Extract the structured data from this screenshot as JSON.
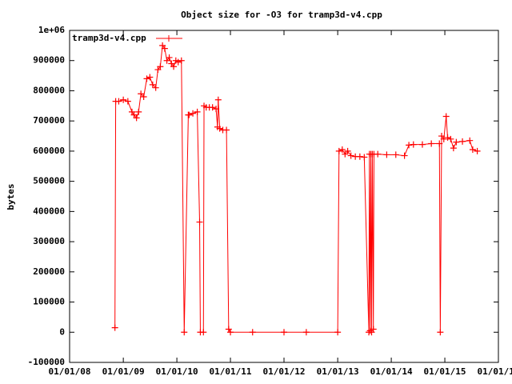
{
  "chart_data": {
    "type": "line",
    "title": "Object size for -O3 for tramp3d-v4.cpp",
    "y_label": "bytes",
    "x": [
      "2008-11-05",
      "2008-11-10",
      "2008-12-01",
      "2009-01-01",
      "2009-02-01",
      "2009-03-01",
      "2009-03-15",
      "2009-04-01",
      "2009-04-15",
      "2009-05-01",
      "2009-05-20",
      "2009-06-10",
      "2009-07-01",
      "2009-07-20",
      "2009-08-10",
      "2009-08-25",
      "2009-09-10",
      "2009-09-25",
      "2009-10-10",
      "2009-10-25",
      "2009-11-10",
      "2009-11-25",
      "2009-12-10",
      "2009-12-25",
      "2010-01-10",
      "2010-02-01",
      "2010-02-20",
      "2010-03-20",
      "2010-03-25",
      "2010-04-20",
      "2010-05-20",
      "2010-06-05",
      "2010-06-10",
      "2010-07-01",
      "2010-07-05",
      "2010-07-20",
      "2010-08-10",
      "2010-09-01",
      "2010-09-25",
      "2010-10-05",
      "2010-10-10",
      "2010-10-20",
      "2010-11-10",
      "2010-12-05",
      "2010-12-20",
      "2011-01-01",
      "2011-06-01",
      "2012-01-01",
      "2012-06-01",
      "2013-01-01",
      "2013-01-10",
      "2013-02-01",
      "2013-02-20",
      "2013-03-10",
      "2013-04-01",
      "2013-05-01",
      "2013-06-01",
      "2013-07-01",
      "2013-08-01",
      "2013-08-05",
      "2013-08-10",
      "2013-08-15",
      "2013-08-20",
      "2013-08-25",
      "2013-09-01",
      "2013-09-05",
      "2013-10-01",
      "2013-12-01",
      "2014-02-01",
      "2014-04-01",
      "2014-05-01",
      "2014-06-01",
      "2014-08-01",
      "2014-10-01",
      "2014-11-25",
      "2014-12-01",
      "2014-12-10",
      "2014-12-25",
      "2015-01-10",
      "2015-01-20",
      "2015-02-10",
      "2015-03-01",
      "2015-03-20",
      "2015-05-01",
      "2015-06-20",
      "2015-07-10",
      "2015-08-10"
    ],
    "series": [
      {
        "name": "tramp3d-v4.cpp",
        "color": "#ff0000",
        "values": [
          15000,
          765000,
          765000,
          770000,
          765000,
          730000,
          720000,
          710000,
          730000,
          790000,
          780000,
          840000,
          845000,
          820000,
          810000,
          870000,
          880000,
          950000,
          940000,
          900000,
          910000,
          890000,
          880000,
          900000,
          895000,
          900000,
          0,
          720000,
          720000,
          725000,
          730000,
          365000,
          0,
          0,
          750000,
          745000,
          745000,
          745000,
          740000,
          680000,
          770000,
          675000,
          670000,
          670000,
          10000,
          0,
          0,
          0,
          0,
          0,
          600000,
          605000,
          590000,
          600000,
          585000,
          582000,
          582000,
          580000,
          0,
          590000,
          5000,
          590000,
          0,
          590000,
          10000,
          590000,
          590000,
          588000,
          588000,
          585000,
          620000,
          622000,
          622000,
          625000,
          625000,
          0,
          650000,
          640000,
          715000,
          645000,
          640000,
          610000,
          630000,
          632000,
          635000,
          605000,
          600000
        ]
      }
    ],
    "xlim": [
      "2008-01-01",
      "2016-01-01"
    ],
    "xticks": [
      {
        "value": "2008-01-01",
        "label": "01/01/08"
      },
      {
        "value": "2009-01-01",
        "label": "01/01/09"
      },
      {
        "value": "2010-01-01",
        "label": "01/01/10"
      },
      {
        "value": "2011-01-01",
        "label": "01/01/11"
      },
      {
        "value": "2012-01-01",
        "label": "01/01/12"
      },
      {
        "value": "2013-01-01",
        "label": "01/01/13"
      },
      {
        "value": "2014-01-01",
        "label": "01/01/14"
      },
      {
        "value": "2015-01-01",
        "label": "01/01/15"
      },
      {
        "value": "2016-01-01",
        "label": "01/01/16"
      }
    ],
    "ylim": [
      -100000,
      1000000
    ],
    "yticks": [
      -100000,
      0,
      100000,
      200000,
      300000,
      400000,
      500000,
      600000,
      700000,
      800000,
      900000,
      {
        "value": 1000000,
        "label": "1e+06"
      }
    ],
    "legend": "top-left"
  }
}
